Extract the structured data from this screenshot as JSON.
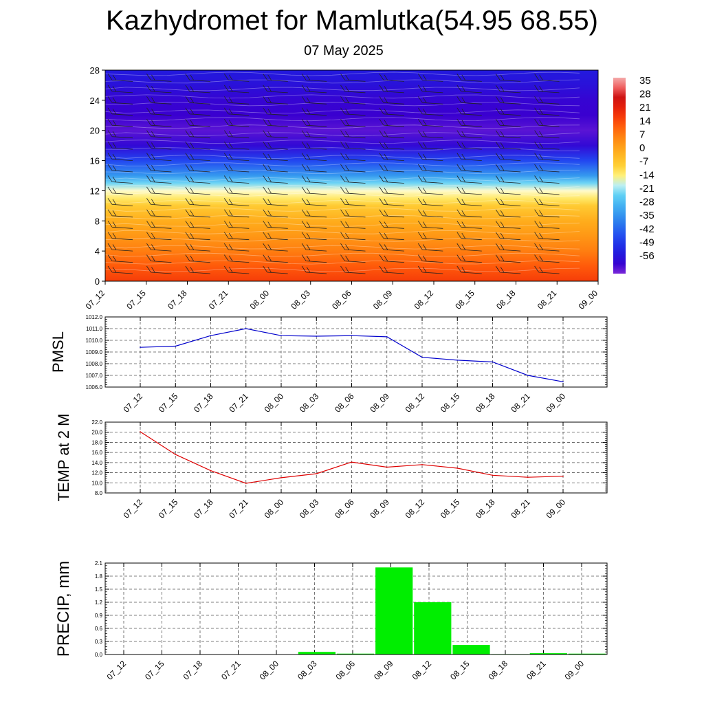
{
  "header": {
    "title": "Kazhydromet for Mamlutka(54.95 68.55)",
    "subtitle": "07 May 2025"
  },
  "colors": {
    "pmsl_line": "#0000cc",
    "temp_line": "#dd0000",
    "precip_bar": "#00ee00",
    "grid": "#555555"
  },
  "chart_data": [
    {
      "id": "crosssection",
      "type": "heatmap",
      "title": "",
      "xlabel": "",
      "ylabel": "",
      "categories": [
        "07_12",
        "07_15",
        "07_18",
        "07_21",
        "08_00",
        "08_03",
        "08_06",
        "08_09",
        "08_12",
        "08_15",
        "08_18",
        "08_21",
        "09_00"
      ],
      "yticks": [
        0,
        4,
        8,
        12,
        16,
        20,
        24,
        28
      ],
      "ylim": [
        0,
        28
      ],
      "colorbar": {
        "labels": [
          "35",
          "28",
          "21",
          "14",
          "7",
          "0",
          "-7",
          "-14",
          "-21",
          "-28",
          "-35",
          "-42",
          "-49",
          "-56"
        ],
        "range": [
          -60,
          38
        ]
      },
      "profile": [
        {
          "h": 0,
          "t": 18
        },
        {
          "h": 2,
          "t": 14
        },
        {
          "h": 4,
          "t": 9
        },
        {
          "h": 6,
          "t": 5
        },
        {
          "h": 8,
          "t": 1
        },
        {
          "h": 10,
          "t": -5
        },
        {
          "h": 11,
          "t": -10
        },
        {
          "h": 12,
          "t": -14
        },
        {
          "h": 13,
          "t": -20
        },
        {
          "h": 14,
          "t": -30
        },
        {
          "h": 16,
          "t": -42
        },
        {
          "h": 18,
          "t": -54
        },
        {
          "h": 20,
          "t": -58
        },
        {
          "h": 22,
          "t": -56
        },
        {
          "h": 24,
          "t": -55
        },
        {
          "h": 26,
          "t": -52
        },
        {
          "h": 28,
          "t": -50
        }
      ]
    },
    {
      "id": "pmsl",
      "type": "line",
      "title": "",
      "xlabel": "",
      "ylabel": "PMSL",
      "categories": [
        "07_12",
        "07_15",
        "07_18",
        "07_21",
        "08_00",
        "08_03",
        "08_06",
        "08_09",
        "08_12",
        "08_15",
        "08_18",
        "08_21",
        "09_00"
      ],
      "yticks": [
        "1006.0",
        "1007.0",
        "1008.0",
        "1009.0",
        "1010.0",
        "1011.0",
        "1012.0"
      ],
      "ylim": [
        1006,
        1012
      ],
      "values": [
        1009.4,
        1009.5,
        1010.4,
        1011.0,
        1010.4,
        1010.35,
        1010.4,
        1010.3,
        1008.55,
        1008.3,
        1008.15,
        1007.0,
        1006.45
      ]
    },
    {
      "id": "temp",
      "type": "line",
      "title": "",
      "xlabel": "",
      "ylabel": "TEMP at 2 M",
      "categories": [
        "07_12",
        "07_15",
        "07_18",
        "07_21",
        "08_00",
        "08_03",
        "08_06",
        "08_09",
        "08_12",
        "08_15",
        "08_18",
        "08_21",
        "09_00"
      ],
      "yticks": [
        "8.0",
        "10.0",
        "12.0",
        "14.0",
        "16.0",
        "18.0",
        "20.0",
        "22.0"
      ],
      "ylim": [
        8,
        22
      ],
      "values": [
        20.1,
        15.6,
        12.4,
        9.9,
        11.0,
        11.8,
        14.1,
        13.1,
        13.6,
        12.9,
        11.5,
        11.1,
        11.3
      ]
    },
    {
      "id": "precip",
      "type": "bar",
      "title": "",
      "xlabel": "",
      "ylabel": "PRECIP, mm",
      "categories": [
        "07_12",
        "07_15",
        "07_18",
        "07_21",
        "08_00",
        "08_03",
        "08_06",
        "08_09",
        "08_12",
        "08_15",
        "08_18",
        "08_21",
        "09_00"
      ],
      "yticks": [
        "0.0",
        "0.3",
        "0.6",
        "0.9",
        "1.2",
        "1.5",
        "1.8",
        "2.1"
      ],
      "ylim": [
        0,
        2.1
      ],
      "values": [
        0,
        0,
        0,
        0,
        0,
        0.06,
        0.02,
        2.0,
        1.2,
        0.22,
        0.01,
        0.03,
        0.02
      ]
    }
  ]
}
